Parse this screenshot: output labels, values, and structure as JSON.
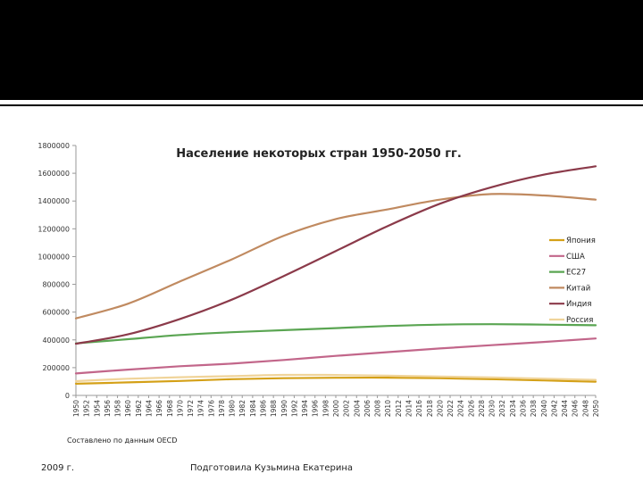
{
  "footer": {
    "source": "Составлено по данным OECD",
    "year": "2009 г.",
    "author": "Подготовила Кузьмина Екатерина"
  },
  "colors": {
    "top_band": "#000000",
    "japan": "#d4a017",
    "usa": "#c2668a",
    "eu27": "#5aa552",
    "china": "#c08a60",
    "india": "#8b3a4a",
    "russia": "#f0d49a"
  },
  "chart_data": {
    "type": "line",
    "title": "Население некоторых стран 1950-2050 гг.",
    "xlabel": "",
    "ylabel": "",
    "ylim": [
      0,
      1800000
    ],
    "yticks": [
      0,
      200000,
      400000,
      600000,
      800000,
      1000000,
      1200000,
      1400000,
      1600000,
      1800000
    ],
    "x": [
      1950,
      1960,
      1970,
      1980,
      1990,
      2000,
      2010,
      2020,
      2030,
      2040,
      2050
    ],
    "xticks": [
      1950,
      1952,
      1954,
      1956,
      1958,
      1960,
      1962,
      1964,
      1966,
      1968,
      1970,
      1972,
      1974,
      1976,
      1978,
      1980,
      1982,
      1984,
      1986,
      1988,
      1990,
      1992,
      1994,
      1996,
      1998,
      2000,
      2002,
      2004,
      2006,
      2008,
      2010,
      2012,
      2014,
      2016,
      2018,
      2020,
      2022,
      2024,
      2026,
      2028,
      2030,
      2032,
      2034,
      2036,
      2038,
      2040,
      2042,
      2044,
      2046,
      2048,
      2050
    ],
    "grid": false,
    "legend_position": "right",
    "series": [
      {
        "name": "Япония",
        "color": "#d4a017",
        "values": [
          84000,
          94000,
          104000,
          117000,
          124000,
          127000,
          128000,
          124000,
          117000,
          108000,
          99000
        ]
      },
      {
        "name": "США",
        "color": "#c2668a",
        "values": [
          158000,
          186000,
          210000,
          229000,
          255000,
          285000,
          312000,
          338000,
          362000,
          385000,
          410000
        ]
      },
      {
        "name": "ЕС27",
        "color": "#5aa552",
        "values": [
          375000,
          405000,
          435000,
          455000,
          470000,
          485000,
          500000,
          510000,
          513000,
          510000,
          505000
        ]
      },
      {
        "name": "Китай",
        "color": "#c08a60",
        "values": [
          555000,
          660000,
          820000,
          980000,
          1150000,
          1270000,
          1340000,
          1410000,
          1450000,
          1440000,
          1410000
        ]
      },
      {
        "name": "Индия",
        "color": "#8b3a4a",
        "values": [
          372000,
          440000,
          550000,
          690000,
          860000,
          1040000,
          1220000,
          1380000,
          1500000,
          1590000,
          1650000
        ]
      },
      {
        "name": "Россия",
        "color": "#f0d49a",
        "values": [
          103000,
          120000,
          131000,
          139000,
          148000,
          147000,
          142000,
          136000,
          129000,
          121000,
          112000
        ]
      }
    ]
  }
}
